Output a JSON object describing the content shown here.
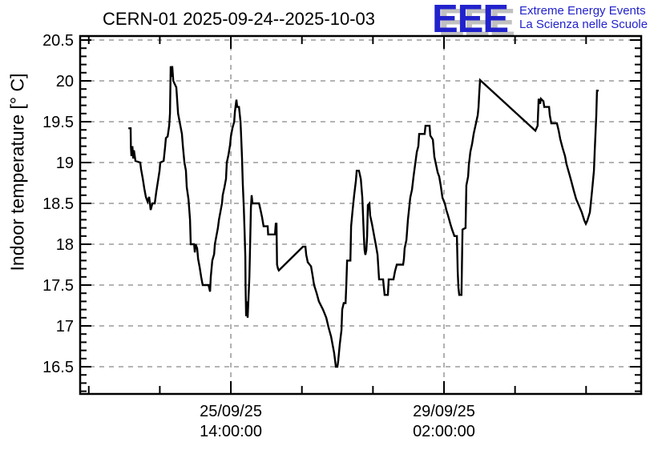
{
  "header": {
    "title": "CERN-01 2025-09-24--2025-10-03",
    "logo": {
      "acronym": "EEE",
      "line1": "Extreme Energy Events",
      "line2": "La Scienza nelle Scuole",
      "blue": "#2222cc",
      "shadow": "#c0c0c0"
    }
  },
  "chart_data": {
    "type": "line",
    "title": "CERN-01 2025-09-24--2025-10-03",
    "xlabel": "",
    "ylabel": "Indoor temperature [° C]",
    "legend": "none",
    "grid": "dashed gray lines at major ticks, both axes",
    "line_color": "#000000",
    "grid_color": "#a9a9a9",
    "frame_color": "#000000",
    "x_axis": {
      "unit": "hours relative to first labeled tick (25/09/25 14:00:00)",
      "range_h": [
        -59.4,
        161.7
      ],
      "minor_tick_step_h": 28,
      "major_ticks": [
        {
          "h": 0,
          "label_line1": "25/09/25",
          "label_line2": "14:00:00"
        },
        {
          "h": 84,
          "label_line1": "29/09/25",
          "label_line2": "02:00:00"
        }
      ]
    },
    "y_axis": {
      "range": [
        16.167,
        20.549
      ],
      "minor_tick_step": 0.1,
      "major_ticks": [
        16.5,
        17,
        17.5,
        18,
        18.5,
        19,
        19.5,
        20,
        20.5
      ],
      "major_tick_labels": [
        "16.5",
        "17",
        "17.5",
        "18",
        "18.5",
        "19",
        "19.5",
        "20",
        "20.5"
      ]
    },
    "points_h_v": [
      [
        -40.4,
        19.42
      ],
      [
        -39.5,
        19.42
      ],
      [
        -39.4,
        19.2
      ],
      [
        -39.2,
        19.08
      ],
      [
        -38.8,
        19.2
      ],
      [
        -38.5,
        19.05
      ],
      [
        -38.2,
        19.15
      ],
      [
        -37.6,
        19.02
      ],
      [
        -35.7,
        19.0
      ],
      [
        -35.4,
        18.92
      ],
      [
        -34.7,
        18.8
      ],
      [
        -34.1,
        18.68
      ],
      [
        -33.5,
        18.58
      ],
      [
        -32.8,
        18.52
      ],
      [
        -32.2,
        18.58
      ],
      [
        -31.6,
        18.42
      ],
      [
        -30.9,
        18.5
      ],
      [
        -30.0,
        18.5
      ],
      [
        -29.4,
        18.64
      ],
      [
        -28.7,
        18.78
      ],
      [
        -28.1,
        18.9
      ],
      [
        -27.8,
        19.0
      ],
      [
        -26.5,
        19.02
      ],
      [
        -25.9,
        19.2
      ],
      [
        -25.6,
        19.3
      ],
      [
        -24.9,
        19.32
      ],
      [
        -24.3,
        19.45
      ],
      [
        -24.0,
        19.6
      ],
      [
        -23.7,
        20.18
      ],
      [
        -23.4,
        20.05
      ],
      [
        -23.1,
        20.18
      ],
      [
        -22.7,
        20.0
      ],
      [
        -21.5,
        19.92
      ],
      [
        -20.8,
        19.6
      ],
      [
        -20.2,
        19.5
      ],
      [
        -19.9,
        19.45
      ],
      [
        -19.3,
        19.35
      ],
      [
        -18.9,
        19.2
      ],
      [
        -18.3,
        19.0
      ],
      [
        -17.7,
        18.9
      ],
      [
        -17.4,
        18.7
      ],
      [
        -16.7,
        18.55
      ],
      [
        -16.1,
        18.3
      ],
      [
        -15.8,
        18.0
      ],
      [
        -14.5,
        18.0
      ],
      [
        -14.2,
        17.9
      ],
      [
        -13.9,
        18.0
      ],
      [
        -13.3,
        17.95
      ],
      [
        -12.9,
        17.82
      ],
      [
        -12.3,
        17.72
      ],
      [
        -11.7,
        17.6
      ],
      [
        -11.1,
        17.5
      ],
      [
        -8.8,
        17.5
      ],
      [
        -8.2,
        17.42
      ],
      [
        -7.9,
        17.6
      ],
      [
        -7.3,
        17.8
      ],
      [
        -6.6,
        17.88
      ],
      [
        -6.3,
        18.0
      ],
      [
        -5.7,
        18.1
      ],
      [
        -5.1,
        18.2
      ],
      [
        -4.7,
        18.3
      ],
      [
        -4.1,
        18.4
      ],
      [
        -3.5,
        18.5
      ],
      [
        -3.2,
        18.6
      ],
      [
        -2.5,
        18.7
      ],
      [
        -1.9,
        18.8
      ],
      [
        -1.6,
        19.0
      ],
      [
        -0.9,
        19.1
      ],
      [
        -0.3,
        19.22
      ],
      [
        0,
        19.32
      ],
      [
        0.6,
        19.42
      ],
      [
        1.3,
        19.5
      ],
      [
        1.6,
        19.62
      ],
      [
        1.9,
        19.7
      ],
      [
        2.2,
        19.77
      ],
      [
        2.5,
        19.68
      ],
      [
        3.2,
        19.68
      ],
      [
        3.8,
        19.5
      ],
      [
        4.1,
        19.3
      ],
      [
        4.4,
        19.05
      ],
      [
        4.7,
        18.75
      ],
      [
        5.1,
        18.45
      ],
      [
        5.4,
        18.15
      ],
      [
        5.7,
        17.85
      ],
      [
        5.8,
        17.5
      ],
      [
        6.0,
        17.12
      ],
      [
        6.3,
        17.3
      ],
      [
        6.6,
        17.1
      ],
      [
        6.9,
        17.3
      ],
      [
        7.3,
        17.6
      ],
      [
        7.6,
        18.0
      ],
      [
        7.9,
        18.45
      ],
      [
        8.2,
        18.6
      ],
      [
        8.5,
        18.5
      ],
      [
        11.1,
        18.5
      ],
      [
        11.7,
        18.42
      ],
      [
        12.3,
        18.33
      ],
      [
        12.9,
        18.22
      ],
      [
        14.5,
        18.22
      ],
      [
        14.7,
        18.12
      ],
      [
        17.4,
        18.12
      ],
      [
        17.7,
        18.25
      ],
      [
        18.0,
        18.25
      ],
      [
        18.2,
        17.75
      ],
      [
        18.6,
        17.7
      ],
      [
        18.9,
        17.68
      ],
      [
        28.4,
        17.97
      ],
      [
        29.4,
        17.97
      ],
      [
        29.7,
        17.87
      ],
      [
        30.3,
        17.78
      ],
      [
        31.6,
        17.73
      ],
      [
        32.2,
        17.62
      ],
      [
        32.8,
        17.5
      ],
      [
        33.8,
        17.4
      ],
      [
        34.7,
        17.3
      ],
      [
        36.3,
        17.2
      ],
      [
        37.6,
        17.1
      ],
      [
        38.5,
        16.98
      ],
      [
        39.5,
        16.87
      ],
      [
        40.1,
        16.77
      ],
      [
        40.7,
        16.67
      ],
      [
        41.1,
        16.57
      ],
      [
        41.4,
        16.5
      ],
      [
        42.0,
        16.5
      ],
      [
        42.3,
        16.57
      ],
      [
        42.9,
        16.77
      ],
      [
        43.6,
        16.95
      ],
      [
        43.9,
        17.2
      ],
      [
        44.5,
        17.28
      ],
      [
        45.2,
        17.28
      ],
      [
        45.5,
        17.5
      ],
      [
        45.8,
        17.8
      ],
      [
        47.1,
        17.8
      ],
      [
        47.4,
        18.22
      ],
      [
        48.0,
        18.42
      ],
      [
        48.6,
        18.6
      ],
      [
        49.3,
        18.78
      ],
      [
        49.6,
        18.9
      ],
      [
        50.5,
        18.9
      ],
      [
        51.2,
        18.8
      ],
      [
        51.8,
        18.57
      ],
      [
        52.4,
        18.1
      ],
      [
        52.7,
        17.93
      ],
      [
        53.0,
        17.87
      ],
      [
        53.4,
        17.93
      ],
      [
        53.7,
        18.1
      ],
      [
        54.0,
        18.48
      ],
      [
        54.6,
        18.5
      ],
      [
        54.9,
        18.35
      ],
      [
        55.6,
        18.25
      ],
      [
        56.5,
        18.1
      ],
      [
        57.2,
        17.98
      ],
      [
        57.8,
        17.87
      ],
      [
        58.4,
        17.57
      ],
      [
        60.0,
        17.57
      ],
      [
        60.3,
        17.47
      ],
      [
        60.6,
        17.38
      ],
      [
        61.9,
        17.38
      ],
      [
        62.2,
        17.57
      ],
      [
        64.1,
        17.57
      ],
      [
        64.7,
        17.67
      ],
      [
        65.4,
        17.75
      ],
      [
        67.9,
        17.75
      ],
      [
        68.2,
        17.82
      ],
      [
        68.5,
        17.95
      ],
      [
        69.2,
        18.05
      ],
      [
        69.8,
        18.3
      ],
      [
        70.7,
        18.57
      ],
      [
        71.4,
        18.67
      ],
      [
        72.0,
        18.83
      ],
      [
        72.6,
        18.97
      ],
      [
        73.3,
        19.13
      ],
      [
        73.9,
        19.2
      ],
      [
        74.2,
        19.35
      ],
      [
        76.4,
        19.35
      ],
      [
        76.7,
        19.45
      ],
      [
        78.3,
        19.45
      ],
      [
        78.6,
        19.33
      ],
      [
        79.6,
        19.28
      ],
      [
        80.2,
        19.07
      ],
      [
        81.5,
        18.88
      ],
      [
        82.1,
        18.83
      ],
      [
        82.7,
        18.72
      ],
      [
        83.4,
        18.57
      ],
      [
        84.3,
        18.5
      ],
      [
        84.9,
        18.42
      ],
      [
        85.6,
        18.35
      ],
      [
        86.5,
        18.25
      ],
      [
        87.2,
        18.18
      ],
      [
        88.1,
        18.1
      ],
      [
        89.1,
        18.1
      ],
      [
        89.4,
        17.67
      ],
      [
        89.7,
        17.47
      ],
      [
        90.0,
        17.38
      ],
      [
        90.9,
        17.38
      ],
      [
        91.3,
        18.18
      ],
      [
        92.5,
        18.2
      ],
      [
        92.8,
        18.72
      ],
      [
        93.5,
        18.83
      ],
      [
        93.8,
        18.97
      ],
      [
        94.4,
        19.13
      ],
      [
        95.1,
        19.23
      ],
      [
        95.7,
        19.35
      ],
      [
        96.6,
        19.48
      ],
      [
        97.3,
        19.58
      ],
      [
        97.6,
        19.68
      ],
      [
        97.9,
        19.85
      ],
      [
        98.2,
        20.01
      ],
      [
        120.0,
        19.39
      ],
      [
        120.9,
        19.45
      ],
      [
        121.3,
        19.78
      ],
      [
        121.9,
        19.72
      ],
      [
        122.2,
        19.78
      ],
      [
        123.2,
        19.75
      ],
      [
        123.5,
        19.68
      ],
      [
        125.4,
        19.68
      ],
      [
        125.7,
        19.58
      ],
      [
        126.3,
        19.48
      ],
      [
        128.5,
        19.48
      ],
      [
        129.2,
        19.39
      ],
      [
        129.8,
        19.29
      ],
      [
        130.7,
        19.18
      ],
      [
        131.7,
        19.08
      ],
      [
        132.3,
        18.98
      ],
      [
        133.3,
        18.87
      ],
      [
        134.2,
        18.77
      ],
      [
        135.2,
        18.65
      ],
      [
        136.1,
        18.55
      ],
      [
        137.1,
        18.48
      ],
      [
        138.3,
        18.39
      ],
      [
        139.3,
        18.29
      ],
      [
        139.9,
        18.25
      ],
      [
        140.5,
        18.29
      ],
      [
        141.5,
        18.39
      ],
      [
        142.1,
        18.57
      ],
      [
        142.4,
        18.67
      ],
      [
        143.1,
        18.9
      ],
      [
        143.4,
        19.15
      ],
      [
        144.0,
        19.57
      ],
      [
        144.3,
        19.88
      ],
      [
        145.0,
        19.88
      ]
    ]
  }
}
